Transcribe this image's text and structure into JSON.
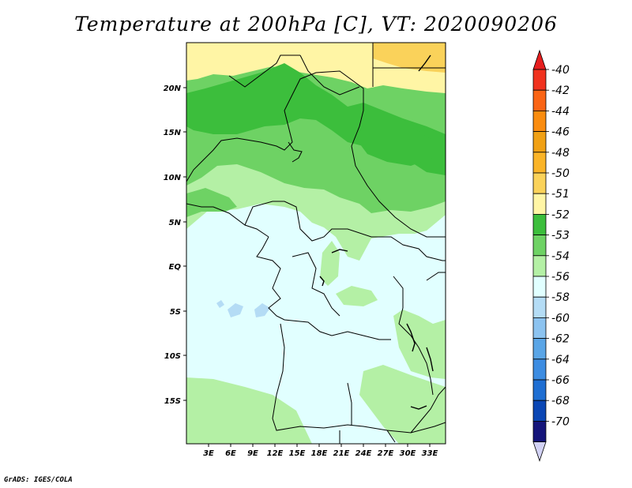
{
  "title": "Temperature at 200hPa [C], VT: 2020090206",
  "credit": "GrADS: IGES/COLA",
  "map": {
    "variable": "Temperature at 200hPa",
    "units": "C",
    "valid_time": "2020090206",
    "lon_range": [
      0,
      34
    ],
    "lat_range": [
      -20,
      25
    ],
    "lon_ticks": [
      "3E",
      "6E",
      "9E",
      "12E",
      "15E",
      "18E",
      "21E",
      "24E",
      "27E",
      "30E",
      "33E"
    ],
    "lat_ticks": [
      "20N",
      "15N",
      "10N",
      "5N",
      "EQ",
      "5S",
      "10S",
      "15S"
    ]
  },
  "colorbar": {
    "labels": [
      "-40",
      "-42",
      "-44",
      "-46",
      "-48",
      "-50",
      "-51",
      "-52",
      "-53",
      "-54",
      "-56",
      "-58",
      "-60",
      "-62",
      "-64",
      "-66",
      "-68",
      "-70"
    ],
    "colors": [
      "#f0321e",
      "#fa6414",
      "#fa8c0f",
      "#f0a014",
      "#fab428",
      "#fad25a",
      "#fff5a5",
      "#3cbe3c",
      "#6ed264",
      "#b4f0a5",
      "#e1ffff",
      "#b4dcf5",
      "#8cc3f0",
      "#5aa5e6",
      "#3c8ce1",
      "#1e6ed2",
      "#0a46b4",
      "#14147a"
    ],
    "top_arrow_color": "#e61e1e",
    "bottom_arrow_color": "#d2d2f5"
  }
}
